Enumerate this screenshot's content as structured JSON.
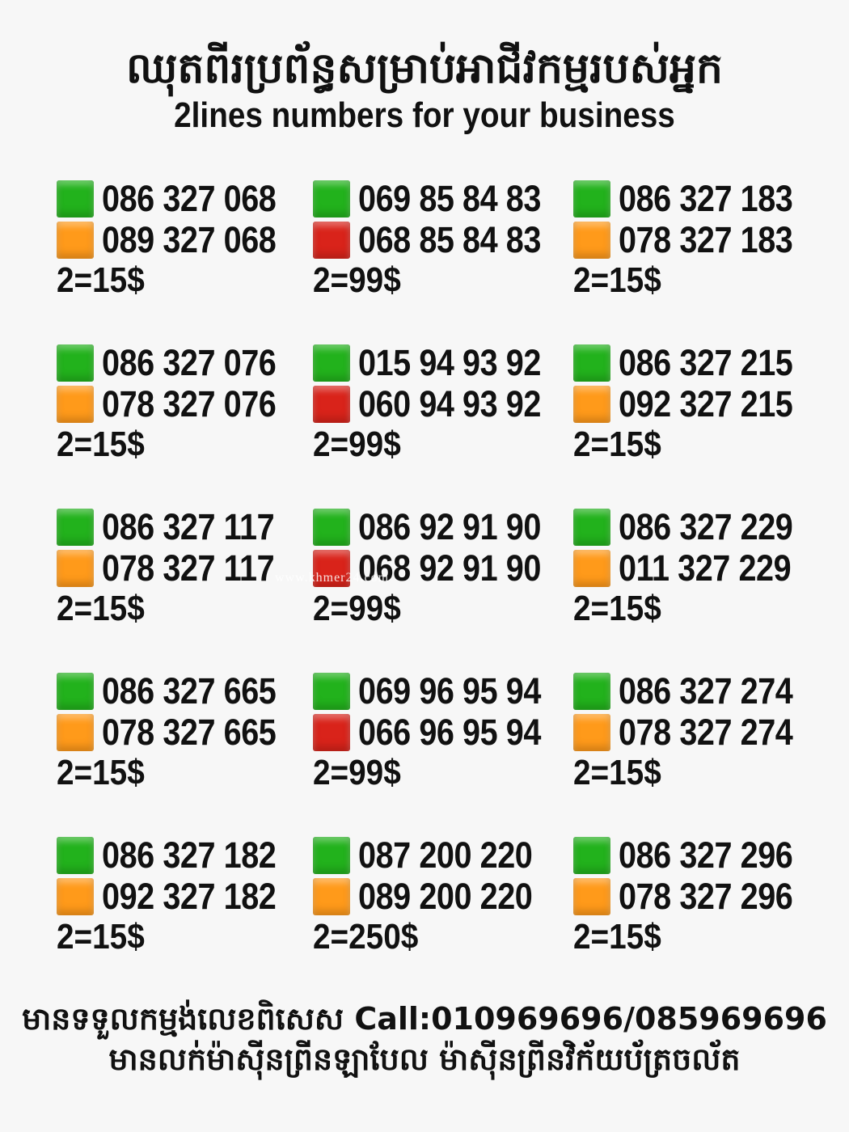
{
  "header": {
    "title_khmer": "ឈុតពីរប្រព័ន្ធសម្រាប់អាជីវកម្មរបស់អ្នក",
    "title_english": "2lines numbers for your business"
  },
  "colors": {
    "green": "#22b21c",
    "orange": "#ff9a1a",
    "red": "#d9231a"
  },
  "groups": [
    {
      "lines": [
        {
          "color": "green",
          "number": "086 327 068"
        },
        {
          "color": "orange",
          "number": "089 327 068"
        }
      ],
      "price": "2=15$"
    },
    {
      "lines": [
        {
          "color": "green",
          "number": "069 85 84 83"
        },
        {
          "color": "red",
          "number": "068 85 84 83"
        }
      ],
      "price": "2=99$"
    },
    {
      "lines": [
        {
          "color": "green",
          "number": "086 327 183"
        },
        {
          "color": "orange",
          "number": "078 327 183"
        }
      ],
      "price": "2=15$"
    },
    {
      "lines": [
        {
          "color": "green",
          "number": "086 327 076"
        },
        {
          "color": "orange",
          "number": "078 327 076"
        }
      ],
      "price": "2=15$"
    },
    {
      "lines": [
        {
          "color": "green",
          "number": "015 94 93 92"
        },
        {
          "color": "red",
          "number": "060 94 93 92"
        }
      ],
      "price": "2=99$"
    },
    {
      "lines": [
        {
          "color": "green",
          "number": "086 327 215"
        },
        {
          "color": "orange",
          "number": "092 327 215"
        }
      ],
      "price": "2=15$"
    },
    {
      "lines": [
        {
          "color": "green",
          "number": "086 327 117"
        },
        {
          "color": "orange",
          "number": "078 327 117"
        }
      ],
      "price": "2=15$"
    },
    {
      "lines": [
        {
          "color": "green",
          "number": "086 92 91 90"
        },
        {
          "color": "red",
          "number": "068 92 91 90"
        }
      ],
      "price": "2=99$"
    },
    {
      "lines": [
        {
          "color": "green",
          "number": "086 327 229"
        },
        {
          "color": "orange",
          "number": "011 327 229"
        }
      ],
      "price": "2=15$"
    },
    {
      "lines": [
        {
          "color": "green",
          "number": "086 327 665"
        },
        {
          "color": "orange",
          "number": "078 327 665"
        }
      ],
      "price": "2=15$"
    },
    {
      "lines": [
        {
          "color": "green",
          "number": "069 96 95 94"
        },
        {
          "color": "red",
          "number": "066 96 95 94"
        }
      ],
      "price": "2=99$"
    },
    {
      "lines": [
        {
          "color": "green",
          "number": "086 327 274"
        },
        {
          "color": "orange",
          "number": "078 327 274"
        }
      ],
      "price": "2=15$"
    },
    {
      "lines": [
        {
          "color": "green",
          "number": "086 327 182"
        },
        {
          "color": "orange",
          "number": "092 327 182"
        }
      ],
      "price": "2=15$"
    },
    {
      "lines": [
        {
          "color": "green",
          "number": "087 200 220"
        },
        {
          "color": "orange",
          "number": "089 200 220"
        }
      ],
      "price": "2=250$"
    },
    {
      "lines": [
        {
          "color": "green",
          "number": "086 327 296"
        },
        {
          "color": "orange",
          "number": "078 327 296"
        }
      ],
      "price": "2=15$"
    }
  ],
  "footer": {
    "line1": "មានទទួលកម្មង់លេខពិសេស Call:010969696/085969696",
    "line2": "មានលក់ម៉ាស៊ីនព្រីនឡាបែល ម៉ាស៊ីនព្រីនវិក័យប័ត្រចល័ត"
  },
  "watermark": "www.khmer24.com"
}
